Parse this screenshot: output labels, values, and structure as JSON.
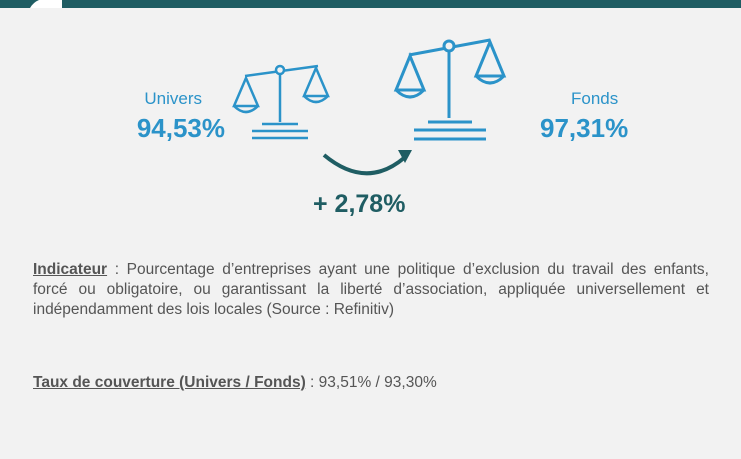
{
  "univers": {
    "label": "Univers",
    "value": "94,53%"
  },
  "fonds": {
    "label": "Fonds",
    "value": "97,31%"
  },
  "change": "+ 2,78%",
  "indicator": {
    "label": "Indicateur",
    "text": " : Pourcentage d’entreprises ayant une politique d’exclusion du travail des enfants, forcé ou obligatoire, ou garantissant la liberté d’association, appliquée universellement et indépendamment des lois locales (Source : Refinitiv)"
  },
  "coverage": {
    "label": "Taux de couverture (Univers / Fonds)",
    "text": " : 93,51% / 93,30%"
  }
}
